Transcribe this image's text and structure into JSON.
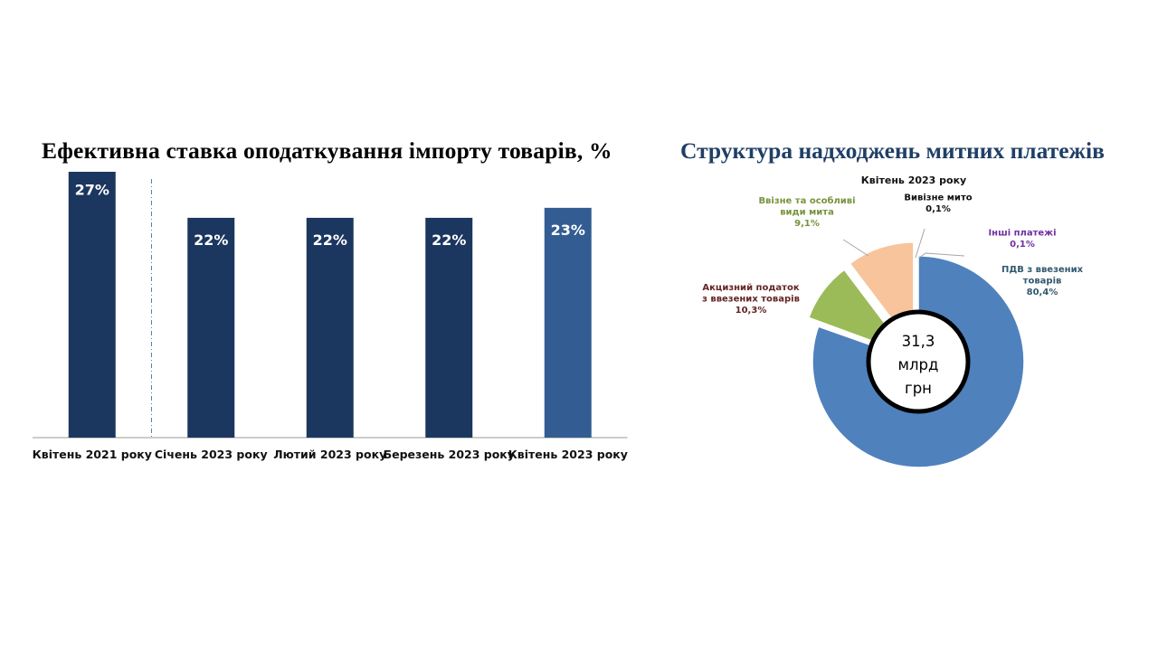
{
  "chart_data": [
    {
      "type": "bar",
      "title": "Ефективна ставка оподаткування імпорту товарів, %",
      "categories": [
        "Квітень 2021 року",
        "Січень 2023 року",
        "Лютий 2023 року",
        "Березень 2023 року",
        "Квітень 2023 року"
      ],
      "values": [
        27,
        22,
        22,
        22,
        23
      ],
      "data_labels": [
        "27%",
        "22%",
        "22%",
        "22%",
        "23%"
      ],
      "colors": [
        "#1b365f",
        "#1b365f",
        "#1b365f",
        "#1b365f",
        "#335d92"
      ],
      "ylim": [
        0,
        30
      ],
      "grid": false,
      "separator_after_first": true
    },
    {
      "type": "pie",
      "style": "donut",
      "title": "Структура надходжень митних платежів",
      "subtitle": "Квітень 2023 року",
      "center_label": [
        "31,3",
        "млрд",
        "грн"
      ],
      "slices": [
        {
          "label_lines": [
            "ПДВ з ввезених",
            "товарів"
          ],
          "value": 80.4,
          "value_label": "80,4%",
          "color": "#4f81bd",
          "label_color": "#31596e"
        },
        {
          "label_lines": [
            "Інші платежі"
          ],
          "value": 0.1,
          "value_label": "0,1%",
          "color": "#8064a2",
          "label_color": "#7030a0"
        },
        {
          "label_lines": [
            "Вивізне мито"
          ],
          "value": 0.1,
          "value_label": "0,1%",
          "color": "#4bacc6",
          "label_color": "#111111"
        },
        {
          "label_lines": [
            "Ввізне та особливі",
            "види мита"
          ],
          "value": 9.1,
          "value_label": "9,1%",
          "color": "#9bbb59",
          "label_color": "#77933c"
        },
        {
          "label_lines": [
            "Акцизний податок",
            "з ввезених товарів"
          ],
          "value": 10.3,
          "value_label": "10,3%",
          "color": "#f8c49b",
          "label_color": "#632523"
        }
      ]
    }
  ]
}
